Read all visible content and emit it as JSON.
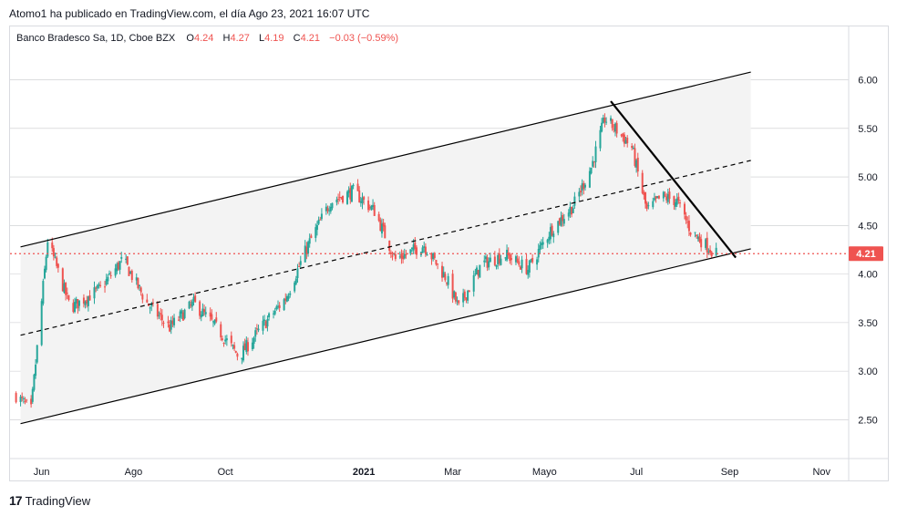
{
  "header": {
    "publisher_text": "Atomo1 ha publicado en TradingView.com, el día Ago 23, 2021 16:07 UTC"
  },
  "legend": {
    "symbol": "Banco Bradesco Sa, 1D, Cboe BZX",
    "o_label": "O",
    "o_value": "4.24",
    "h_label": "H",
    "h_value": "4.27",
    "l_label": "L",
    "l_value": "4.19",
    "c_label": "C",
    "c_value": "4.21",
    "change": "−0.03 (−0.59%)"
  },
  "branding": {
    "logo_mark": "17",
    "name": "TradingView"
  },
  "colors": {
    "up": "#26a69a",
    "down": "#ef5350",
    "last_price": "#ef5350",
    "channel_fill": "#f3f3f3",
    "grid": "#c8c9cc",
    "line": "#000000"
  },
  "chart_data": {
    "type": "candlestick",
    "title": "Banco Bradesco Sa, 1D, Cboe BZX",
    "y_ticks": [
      "6.00",
      "5.50",
      "5.00",
      "4.50",
      "4.00",
      "3.50",
      "3.00",
      "2.50"
    ],
    "ylim": [
      2.1,
      6.55
    ],
    "x_ticks": [
      "Jun",
      "Ago",
      "Oct",
      "2021",
      "Mar",
      "Mayo",
      "Jul",
      "Sep",
      "Nov"
    ],
    "x_start": "2020-05-11",
    "x_end": "2021-11-19",
    "last_price": 4.21,
    "last_price_label": "4.21",
    "grid": true,
    "monthly_closes": [
      {
        "date": "2020-05-15",
        "close": 2.75
      },
      {
        "date": "2020-05-25",
        "close": 2.6
      },
      {
        "date": "2020-06-05",
        "close": 4.35
      },
      {
        "date": "2020-06-20",
        "close": 3.65
      },
      {
        "date": "2020-07-10",
        "close": 3.85
      },
      {
        "date": "2020-07-25",
        "close": 4.15
      },
      {
        "date": "2020-08-10",
        "close": 3.7
      },
      {
        "date": "2020-08-25",
        "close": 3.45
      },
      {
        "date": "2020-09-10",
        "close": 3.7
      },
      {
        "date": "2020-09-25",
        "close": 3.45
      },
      {
        "date": "2020-10-10",
        "close": 3.15
      },
      {
        "date": "2020-10-25",
        "close": 3.45
      },
      {
        "date": "2020-11-10",
        "close": 3.75
      },
      {
        "date": "2020-11-25",
        "close": 4.3
      },
      {
        "date": "2020-12-10",
        "close": 4.75
      },
      {
        "date": "2020-12-25",
        "close": 4.85
      },
      {
        "date": "2021-01-08",
        "close": 4.65
      },
      {
        "date": "2021-01-22",
        "close": 4.15
      },
      {
        "date": "2021-02-10",
        "close": 4.3
      },
      {
        "date": "2021-02-25",
        "close": 3.95
      },
      {
        "date": "2021-03-05",
        "close": 3.65
      },
      {
        "date": "2021-03-20",
        "close": 4.1
      },
      {
        "date": "2021-04-05",
        "close": 4.2
      },
      {
        "date": "2021-04-20",
        "close": 4.05
      },
      {
        "date": "2021-05-05",
        "close": 4.45
      },
      {
        "date": "2021-05-20",
        "close": 4.7
      },
      {
        "date": "2021-06-01",
        "close": 5.1
      },
      {
        "date": "2021-06-10",
        "close": 5.6
      },
      {
        "date": "2021-06-20",
        "close": 5.45
      },
      {
        "date": "2021-06-28",
        "close": 5.3
      },
      {
        "date": "2021-07-08",
        "close": 4.65
      },
      {
        "date": "2021-07-18",
        "close": 4.8
      },
      {
        "date": "2021-07-28",
        "close": 4.75
      },
      {
        "date": "2021-08-06",
        "close": 4.45
      },
      {
        "date": "2021-08-16",
        "close": 4.3
      },
      {
        "date": "2021-08-23",
        "close": 4.21
      }
    ],
    "drawings": [
      {
        "name": "channel-upper",
        "style": "solid",
        "points": [
          [
            "2020-05-18",
            4.28
          ],
          [
            "2021-09-15",
            6.08
          ]
        ]
      },
      {
        "name": "channel-middle",
        "style": "dashed",
        "points": [
          [
            "2020-05-18",
            3.37
          ],
          [
            "2021-09-15",
            5.17
          ]
        ]
      },
      {
        "name": "channel-lower",
        "style": "solid",
        "points": [
          [
            "2020-05-18",
            2.46
          ],
          [
            "2021-09-15",
            4.26
          ]
        ]
      },
      {
        "name": "downtrend",
        "style": "solid-thick",
        "points": [
          [
            "2021-06-14",
            5.78
          ],
          [
            "2021-09-05",
            4.17
          ]
        ]
      }
    ]
  }
}
